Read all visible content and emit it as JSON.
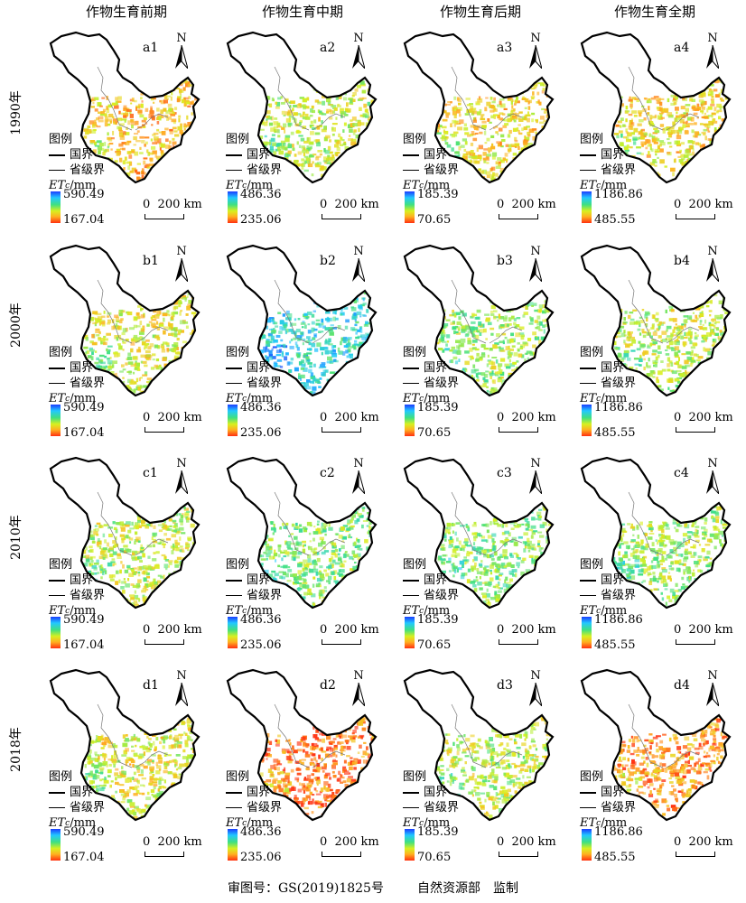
{
  "columns": [
    "作物生育前期",
    "作物生育中期",
    "作物生育后期",
    "作物生育全期"
  ],
  "rows": [
    {
      "year": "1990年",
      "prefix": "a"
    },
    {
      "year": "2000年",
      "prefix": "b"
    },
    {
      "year": "2010年",
      "prefix": "c"
    },
    {
      "year": "2018年",
      "prefix": "d"
    }
  ],
  "panels": [
    {
      "label": "a1",
      "max": "590.49",
      "min": "167.04",
      "level": 0.25
    },
    {
      "label": "a2",
      "max": "486.36",
      "min": "235.06",
      "level": 0.4
    },
    {
      "label": "a3",
      "max": "185.39",
      "min": "70.65",
      "level": 0.3
    },
    {
      "label": "a4",
      "max": "1186.86",
      "min": "485.55",
      "level": 0.3
    },
    {
      "label": "b1",
      "max": "590.49",
      "min": "167.04",
      "level": 0.35
    },
    {
      "label": "b2",
      "max": "486.36",
      "min": "235.06",
      "level": 0.7
    },
    {
      "label": "b3",
      "max": "185.39",
      "min": "70.65",
      "level": 0.45
    },
    {
      "label": "b4",
      "max": "1186.86",
      "min": "485.55",
      "level": 0.4
    },
    {
      "label": "c1",
      "max": "590.49",
      "min": "167.04",
      "level": 0.4
    },
    {
      "label": "c2",
      "max": "486.36",
      "min": "235.06",
      "level": 0.5
    },
    {
      "label": "c3",
      "max": "185.39",
      "min": "70.65",
      "level": 0.5
    },
    {
      "label": "c4",
      "max": "1186.86",
      "min": "485.55",
      "level": 0.45
    },
    {
      "label": "d1",
      "max": "590.49",
      "min": "167.04",
      "level": 0.35
    },
    {
      "label": "d2",
      "max": "486.36",
      "min": "235.06",
      "level": 0.1
    },
    {
      "label": "d3",
      "max": "185.39",
      "min": "70.65",
      "level": 0.4
    },
    {
      "label": "d4",
      "max": "1186.86",
      "min": "485.55",
      "level": 0.15
    }
  ],
  "legend": {
    "title": "图例",
    "national_border": "国界",
    "provincial_border": "省级界",
    "unit_var": "ET",
    "unit_sub": "c",
    "unit_rest": "/mm"
  },
  "north_label": "N",
  "scale": {
    "zero": "0",
    "dist": "200 km"
  },
  "colors": {
    "high": "#1a3cff",
    "mid": "#d8f020",
    "low": "#ff3010"
  },
  "footer": {
    "review_no": "审图号：GS(2019)1825号",
    "supervisor": "自然资源部　监制"
  }
}
